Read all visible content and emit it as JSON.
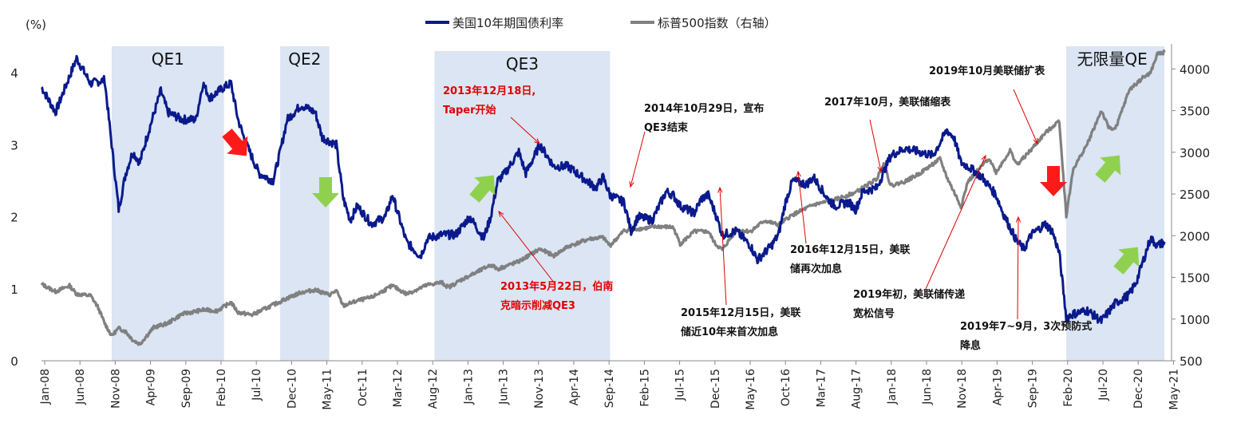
{
  "chart_data": {
    "type": "line",
    "unit_label": "(%)",
    "y_left": {
      "lim": [
        0,
        4.4
      ],
      "ticks": [
        "0",
        "1",
        "2",
        "3",
        "4"
      ]
    },
    "y_right": {
      "lim": [
        500,
        4300
      ],
      "ticks": [
        "500",
        "1000",
        "1500",
        "2000",
        "2500",
        "3000",
        "3500",
        "4000"
      ]
    },
    "x_ticks": [
      "Jan-08",
      "Jun-08",
      "Nov-08",
      "Apr-09",
      "Sep-09",
      "Feb-10",
      "Jul-10",
      "Dec-10",
      "May-11",
      "Oct-11",
      "Mar-12",
      "Aug-12",
      "Jan-13",
      "Jun-13",
      "Nov-13",
      "Apr-14",
      "Sep-14",
      "Feb-15",
      "Jul-15",
      "Dec-15",
      "May-16",
      "Oct-16",
      "Mar-17",
      "Aug-17",
      "Jan-18",
      "Jun-18",
      "Nov-18",
      "Apr-19",
      "Sep-19",
      "Feb-20",
      "Jul-20",
      "Dec-20",
      "May-21"
    ],
    "series": [
      {
        "name": "美国10年期国债利率",
        "axis": "left",
        "color": "#0a1a8c",
        "points": [
          [
            "2008-01",
            3.8
          ],
          [
            "2008-03",
            3.45
          ],
          [
            "2008-06",
            4.2
          ],
          [
            "2008-08",
            3.85
          ],
          [
            "2008-10",
            3.9
          ],
          [
            "2008-11",
            3.0
          ],
          [
            "2008-12",
            2.1
          ],
          [
            "2009-01",
            2.6
          ],
          [
            "2009-02",
            2.9
          ],
          [
            "2009-03",
            2.75
          ],
          [
            "2009-04",
            3.1
          ],
          [
            "2009-06",
            3.75
          ],
          [
            "2009-07",
            3.45
          ],
          [
            "2009-09",
            3.35
          ],
          [
            "2009-11",
            3.35
          ],
          [
            "2009-12",
            3.85
          ],
          [
            "2010-01",
            3.65
          ],
          [
            "2010-03",
            3.8
          ],
          [
            "2010-04",
            3.85
          ],
          [
            "2010-05",
            3.35
          ],
          [
            "2010-06",
            3.05
          ],
          [
            "2010-08",
            2.6
          ],
          [
            "2010-09",
            2.55
          ],
          [
            "2010-10",
            2.5
          ],
          [
            "2010-11",
            2.9
          ],
          [
            "2010-12",
            3.35
          ],
          [
            "2011-02",
            3.55
          ],
          [
            "2011-04",
            3.45
          ],
          [
            "2011-05",
            3.1
          ],
          [
            "2011-07",
            3.0
          ],
          [
            "2011-08",
            2.25
          ],
          [
            "2011-09",
            1.95
          ],
          [
            "2011-10",
            2.15
          ],
          [
            "2011-12",
            1.9
          ],
          [
            "2012-02",
            2.0
          ],
          [
            "2012-03",
            2.3
          ],
          [
            "2012-05",
            1.65
          ],
          [
            "2012-07",
            1.45
          ],
          [
            "2012-08",
            1.7
          ],
          [
            "2012-10",
            1.75
          ],
          [
            "2012-12",
            1.75
          ],
          [
            "2013-02",
            2.0
          ],
          [
            "2013-04",
            1.7
          ],
          [
            "2013-05",
            2.0
          ],
          [
            "2013-06",
            2.5
          ],
          [
            "2013-07",
            2.6
          ],
          [
            "2013-09",
            2.9
          ],
          [
            "2013-10",
            2.6
          ],
          [
            "2013-12",
            3.0
          ],
          [
            "2014-02",
            2.7
          ],
          [
            "2014-04",
            2.7
          ],
          [
            "2014-06",
            2.55
          ],
          [
            "2014-08",
            2.4
          ],
          [
            "2014-09",
            2.55
          ],
          [
            "2014-10",
            2.3
          ],
          [
            "2014-12",
            2.2
          ],
          [
            "2015-01",
            1.8
          ],
          [
            "2015-02",
            2.0
          ],
          [
            "2015-04",
            1.95
          ],
          [
            "2015-06",
            2.35
          ],
          [
            "2015-07",
            2.3
          ],
          [
            "2015-08",
            2.15
          ],
          [
            "2015-10",
            2.05
          ],
          [
            "2015-11",
            2.25
          ],
          [
            "2015-12",
            2.3
          ],
          [
            "2016-01",
            2.05
          ],
          [
            "2016-02",
            1.75
          ],
          [
            "2016-04",
            1.8
          ],
          [
            "2016-06",
            1.6
          ],
          [
            "2016-07",
            1.4
          ],
          [
            "2016-09",
            1.6
          ],
          [
            "2016-10",
            1.75
          ],
          [
            "2016-11",
            2.2
          ],
          [
            "2016-12",
            2.5
          ],
          [
            "2017-02",
            2.45
          ],
          [
            "2017-03",
            2.55
          ],
          [
            "2017-05",
            2.25
          ],
          [
            "2017-06",
            2.15
          ],
          [
            "2017-08",
            2.2
          ],
          [
            "2017-09",
            2.1
          ],
          [
            "2017-10",
            2.35
          ],
          [
            "2017-12",
            2.4
          ],
          [
            "2018-02",
            2.85
          ],
          [
            "2018-04",
            2.95
          ],
          [
            "2018-06",
            2.9
          ],
          [
            "2018-08",
            2.85
          ],
          [
            "2018-10",
            3.2
          ],
          [
            "2018-11",
            3.1
          ],
          [
            "2018-12",
            2.75
          ],
          [
            "2019-01",
            2.7
          ],
          [
            "2019-03",
            2.55
          ],
          [
            "2019-05",
            2.3
          ],
          [
            "2019-06",
            2.05
          ],
          [
            "2019-08",
            1.65
          ],
          [
            "2019-09",
            1.55
          ],
          [
            "2019-10",
            1.75
          ],
          [
            "2019-12",
            1.9
          ],
          [
            "2020-01",
            1.8
          ],
          [
            "2020-02",
            1.5
          ],
          [
            "2020-03",
            0.6
          ],
          [
            "2020-04",
            0.65
          ],
          [
            "2020-06",
            0.7
          ],
          [
            "2020-08",
            0.55
          ],
          [
            "2020-10",
            0.8
          ],
          [
            "2020-12",
            0.92
          ],
          [
            "2021-01",
            1.1
          ],
          [
            "2021-02",
            1.4
          ],
          [
            "2021-03",
            1.7
          ],
          [
            "2021-04",
            1.6
          ],
          [
            "2021-05",
            1.65
          ]
        ]
      },
      {
        "name": "标普500指数（右轴）",
        "axis": "right",
        "color": "#808080",
        "points": [
          [
            "2008-01",
            1420
          ],
          [
            "2008-03",
            1330
          ],
          [
            "2008-05",
            1400
          ],
          [
            "2008-06",
            1300
          ],
          [
            "2008-08",
            1280
          ],
          [
            "2008-09",
            1150
          ],
          [
            "2008-10",
            950
          ],
          [
            "2008-11",
            800
          ],
          [
            "2008-12",
            890
          ],
          [
            "2009-01",
            850
          ],
          [
            "2009-02",
            750
          ],
          [
            "2009-03",
            700
          ],
          [
            "2009-05",
            900
          ],
          [
            "2009-07",
            950
          ],
          [
            "2009-09",
            1060
          ],
          [
            "2009-12",
            1110
          ],
          [
            "2010-02",
            1100
          ],
          [
            "2010-04",
            1200
          ],
          [
            "2010-05",
            1080
          ],
          [
            "2010-07",
            1050
          ],
          [
            "2010-09",
            1130
          ],
          [
            "2010-12",
            1250
          ],
          [
            "2011-02",
            1320
          ],
          [
            "2011-04",
            1350
          ],
          [
            "2011-06",
            1290
          ],
          [
            "2011-07",
            1340
          ],
          [
            "2011-08",
            1160
          ],
          [
            "2011-10",
            1220
          ],
          [
            "2011-12",
            1260
          ],
          [
            "2012-03",
            1400
          ],
          [
            "2012-05",
            1300
          ],
          [
            "2012-08",
            1410
          ],
          [
            "2012-10",
            1440
          ],
          [
            "2012-11",
            1380
          ],
          [
            "2013-01",
            1480
          ],
          [
            "2013-03",
            1560
          ],
          [
            "2013-05",
            1650
          ],
          [
            "2013-06",
            1600
          ],
          [
            "2013-09",
            1690
          ],
          [
            "2013-12",
            1840
          ],
          [
            "2014-02",
            1760
          ],
          [
            "2014-04",
            1870
          ],
          [
            "2014-07",
            1960
          ],
          [
            "2014-09",
            1980
          ],
          [
            "2014-10",
            1880
          ],
          [
            "2014-12",
            2060
          ],
          [
            "2015-03",
            2090
          ],
          [
            "2015-05",
            2110
          ],
          [
            "2015-07",
            2100
          ],
          [
            "2015-08",
            1900
          ],
          [
            "2015-10",
            2050
          ],
          [
            "2015-12",
            2050
          ],
          [
            "2016-01",
            1900
          ],
          [
            "2016-02",
            1830
          ],
          [
            "2016-04",
            2070
          ],
          [
            "2016-06",
            2050
          ],
          [
            "2016-08",
            2180
          ],
          [
            "2016-10",
            2130
          ],
          [
            "2016-12",
            2250
          ],
          [
            "2017-03",
            2370
          ],
          [
            "2017-06",
            2430
          ],
          [
            "2017-09",
            2520
          ],
          [
            "2017-12",
            2680
          ],
          [
            "2018-01",
            2870
          ],
          [
            "2018-02",
            2600
          ],
          [
            "2018-04",
            2650
          ],
          [
            "2018-06",
            2740
          ],
          [
            "2018-09",
            2920
          ],
          [
            "2018-10",
            2700
          ],
          [
            "2018-12",
            2350
          ],
          [
            "2019-01",
            2650
          ],
          [
            "2019-04",
            2930
          ],
          [
            "2019-05",
            2760
          ],
          [
            "2019-07",
            3020
          ],
          [
            "2019-08",
            2850
          ],
          [
            "2019-10",
            3030
          ],
          [
            "2019-12",
            3230
          ],
          [
            "2020-02",
            3380
          ],
          [
            "2020-03",
            2240
          ],
          [
            "2020-04",
            2800
          ],
          [
            "2020-06",
            3100
          ],
          [
            "2020-08",
            3500
          ],
          [
            "2020-09",
            3300
          ],
          [
            "2020-10",
            3280
          ],
          [
            "2020-12",
            3750
          ],
          [
            "2021-02",
            3900
          ],
          [
            "2021-03",
            3950
          ],
          [
            "2021-04",
            4180
          ],
          [
            "2021-05",
            4200
          ]
        ]
      }
    ],
    "regions": [
      {
        "label": "QE1",
        "start": "2008-11",
        "end": "2010-03"
      },
      {
        "label": "QE2",
        "start": "2010-11",
        "end": "2011-06"
      },
      {
        "label": "QE3",
        "start": "2012-09",
        "end": "2014-10"
      },
      {
        "label": "无限量QE",
        "start": "2020-03",
        "end": "2021-05"
      }
    ],
    "annotations": [
      {
        "text": [
          "2013年12月18日,",
          "Taper开始"
        ],
        "color": "red"
      },
      {
        "text": [
          "2014年10月29日，宣布",
          "QE3结束"
        ],
        "color": "black"
      },
      {
        "text": [
          "2017年10月，美联储缩表"
        ],
        "color": "black"
      },
      {
        "text": [
          "2019年10月美联储扩表"
        ],
        "color": "black"
      },
      {
        "text": [
          "2013年5月22日，伯南",
          "克暗示削减QE3"
        ],
        "color": "red"
      },
      {
        "text": [
          "2016年12月15日，美联",
          "储再次加息"
        ],
        "color": "black"
      },
      {
        "text": [
          "2019年初，美联储传递",
          "宽松信号"
        ],
        "color": "black"
      },
      {
        "text": [
          "2015年12月15日，美联",
          "储近10年来首次加息"
        ],
        "color": "black"
      },
      {
        "text": [
          "2019年7~9月，3次预防式",
          "降息"
        ],
        "color": "black"
      }
    ],
    "arrow_colors": {
      "down": "#ff1a1a",
      "up": "#8fd14f"
    },
    "region_color": "#dbe5f3",
    "grid": false,
    "legend": "top-center"
  }
}
